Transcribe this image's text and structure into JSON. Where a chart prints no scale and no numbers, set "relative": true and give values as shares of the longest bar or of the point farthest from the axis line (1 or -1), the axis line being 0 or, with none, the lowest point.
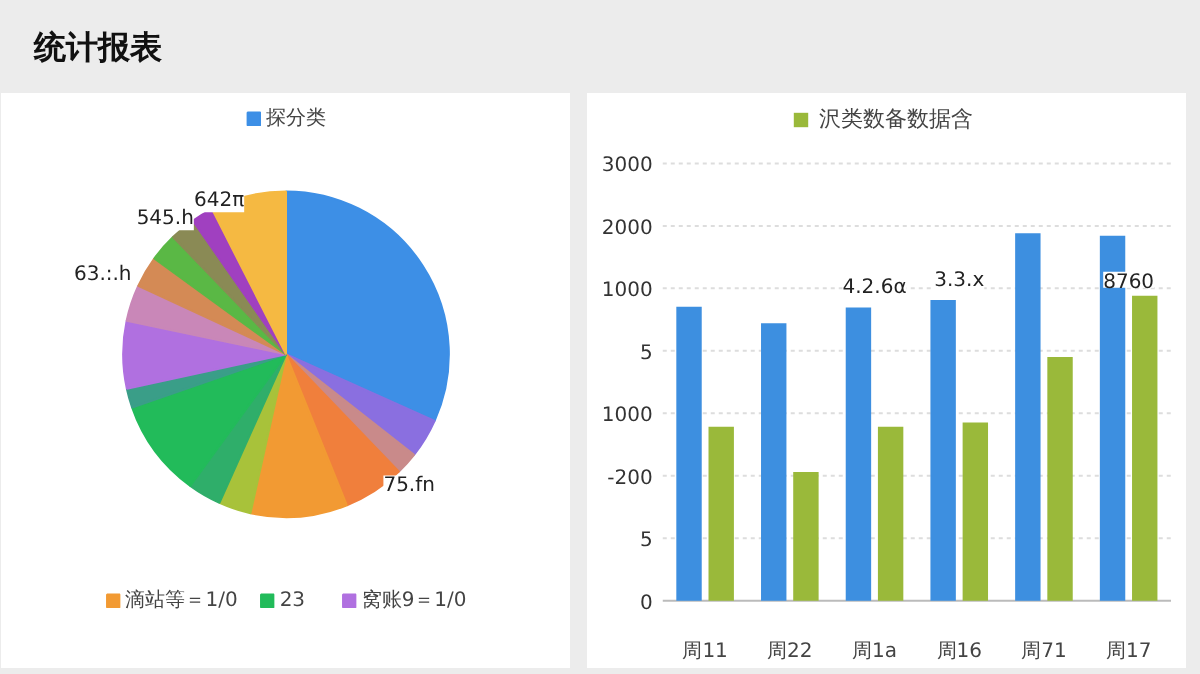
{
  "chart_data": [
    {
      "type": "pie",
      "title": "统计报表",
      "categories": [
        "探分类",
        null,
        null,
        null,
        "滴站等＝1/0",
        null,
        null,
        "23",
        null,
        "窝账9＝1/0",
        null,
        null,
        null,
        null,
        null,
        null
      ],
      "values": [
        31.7,
        3.9,
        2.2,
        6.1,
        9.6,
        3.2,
        3.3,
        9.7,
        1.9,
        6.7,
        3.6,
        3.1,
        2.8,
        2.5,
        2.2,
        7.5
      ],
      "colors": [
        "#3d8fe6",
        "#8a6fe0",
        "#c98a8a",
        "#f07f3c",
        "#f29a33",
        "#a8c23a",
        "#2fae6a",
        "#22bb5a",
        "#3a9e88",
        "#b070e0",
        "#c987b8",
        "#d48a55",
        "#5ab845",
        "#8a8a55",
        "#a040c0",
        "#f5b942"
      ],
      "annotations": [
        "75.fn",
        "63.:.h",
        "545.h",
        "642π"
      ],
      "legend": "bottom"
    },
    {
      "type": "bar",
      "categories": [
        "周11",
        "周22",
        "周1a",
        "周16",
        "周71",
        "周17"
      ],
      "series": [
        {
          "color": "#3d8fe0",
          "values": [
            0.8,
            0.755,
            0.798,
            0.818,
            1.0,
            0.993
          ]
        },
        {
          "name": "沢类数备数据含",
          "color": "#9ab93a",
          "values": [
            0.473,
            0.35,
            0.473,
            0.485,
            0.663,
            0.83
          ]
        }
      ],
      "relative": true,
      "annotations": [
        "3000",
        "2000",
        "1000",
        "5",
        "1000",
        "-200",
        "5",
        "0",
        {
          "text": "4.2.6α",
          "x": "周1a",
          "y": 0.798
        },
        {
          "text": "3.3.x",
          "x": "周16",
          "y": 0.818
        },
        {
          "text": "8760",
          "x": "周17",
          "y": 0.83
        }
      ],
      "grid": "y",
      "legend": "top"
    }
  ]
}
